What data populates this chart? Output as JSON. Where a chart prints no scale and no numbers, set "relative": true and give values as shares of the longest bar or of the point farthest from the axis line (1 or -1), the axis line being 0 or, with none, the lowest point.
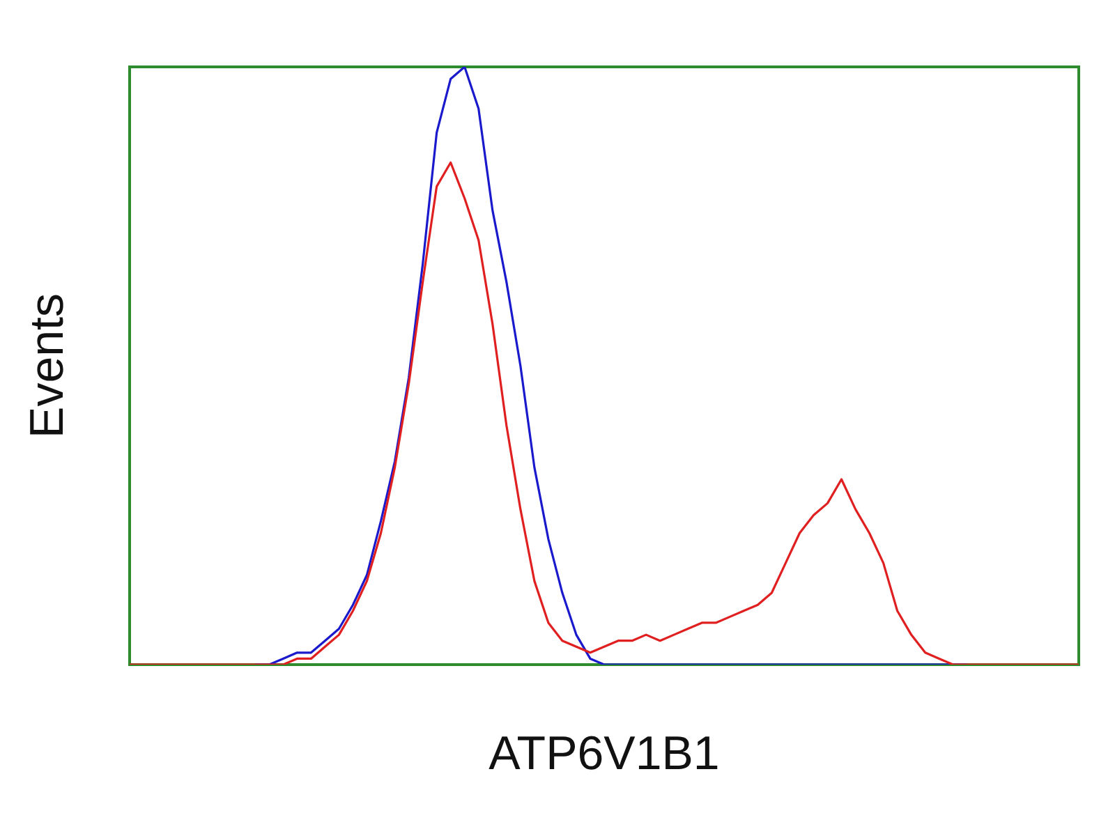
{
  "chart_data": {
    "type": "line",
    "relative": true,
    "xlabel": "ATP6V1B1",
    "ylabel": "Events",
    "marker": "none",
    "legend": false,
    "categories": [
      null,
      null,
      null,
      null,
      null,
      null,
      null,
      null,
      null,
      null,
      null,
      null,
      null,
      null,
      null,
      null,
      null,
      null,
      null,
      null,
      null,
      null,
      null,
      null,
      null,
      null,
      null,
      null,
      null,
      null,
      null,
      null,
      null,
      null,
      null,
      null,
      null,
      null,
      null,
      null,
      null,
      null,
      null,
      null,
      null,
      null,
      null,
      null,
      null,
      null,
      null,
      null,
      null,
      null,
      null,
      null,
      null,
      null,
      null,
      null,
      null,
      null,
      null,
      null,
      null,
      null,
      null,
      null,
      null
    ],
    "series": [
      {
        "color": "#1a1acc",
        "values": [
          null,
          null,
          null,
          null,
          null,
          null,
          null,
          null,
          null,
          0,
          0,
          0.01,
          0.02,
          0.02,
          0.04,
          0.06,
          0.1,
          0.15,
          0.24,
          0.34,
          0.48,
          0.67,
          0.89,
          0.98,
          1,
          0.93,
          0.76,
          0.64,
          0.5,
          0.33,
          0.21,
          0.12,
          0.05,
          0.01,
          0,
          0,
          0,
          0,
          0,
          0,
          0,
          0,
          0,
          0,
          0,
          0,
          0,
          0,
          0,
          0,
          0,
          0,
          0,
          0,
          0,
          0,
          0,
          0,
          0,
          0,
          0,
          null,
          null,
          null,
          null,
          null,
          null,
          null,
          null
        ]
      },
      {
        "color": "#e02020",
        "values": [
          0,
          0,
          0,
          0,
          0,
          0,
          0,
          0,
          0,
          0,
          0,
          0,
          0.01,
          0.01,
          0.03,
          0.05,
          0.09,
          0.14,
          0.22,
          0.33,
          0.47,
          0.64,
          0.8,
          0.84,
          0.78,
          0.71,
          0.57,
          0.4,
          0.26,
          0.14,
          0.07,
          0.04,
          0.03,
          0.02,
          0.03,
          0.04,
          0.04,
          0.05,
          0.04,
          0.05,
          0.06,
          0.07,
          0.07,
          0.08,
          0.09,
          0.1,
          0.12,
          0.17,
          0.22,
          0.25,
          0.27,
          0.31,
          0.26,
          0.22,
          0.17,
          0.09,
          0.05,
          0.02,
          0.01,
          0,
          0,
          0,
          0,
          0,
          0,
          0,
          0,
          0,
          0
        ]
      }
    ]
  }
}
